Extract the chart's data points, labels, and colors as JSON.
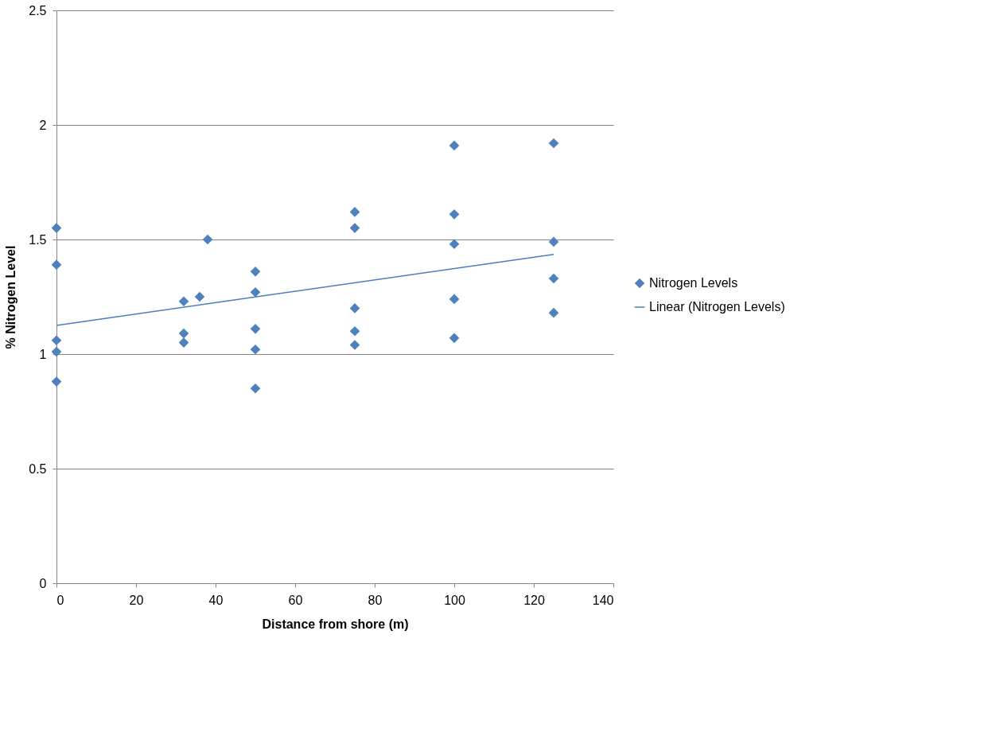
{
  "chart_data": {
    "type": "scatter",
    "xlabel": "Distance from shore (m)",
    "ylabel": "% Nitrogen Level",
    "xlim": [
      0,
      140
    ],
    "xticks": [
      0,
      20,
      40,
      60,
      80,
      100,
      120,
      140
    ],
    "ylim": [
      0,
      2.5
    ],
    "yticks": [
      0,
      0.5,
      1,
      1.5,
      2,
      2.5
    ],
    "grid": "y",
    "legend": "right",
    "series": [
      {
        "name": "Nitrogen Levels",
        "color": "#4f81bd",
        "marker": "diamond",
        "x": [
          0,
          0,
          0,
          0,
          0,
          32,
          32,
          32,
          36,
          38,
          50,
          50,
          50,
          50,
          50,
          75,
          75,
          75,
          75,
          75,
          100,
          100,
          100,
          100,
          100,
          125,
          125,
          125,
          125
        ],
        "values": [
          1.55,
          1.39,
          1.06,
          1.01,
          0.88,
          1.23,
          1.09,
          1.05,
          1.25,
          1.5,
          1.36,
          1.27,
          1.11,
          1.02,
          0.85,
          1.62,
          1.55,
          1.2,
          1.1,
          1.04,
          1.91,
          1.61,
          1.48,
          1.24,
          1.07,
          1.92,
          1.49,
          1.33,
          1.18
        ]
      },
      {
        "name": "Linear (Nitrogen Levels)",
        "type": "line",
        "marker": "none",
        "color": "#4a7ebb",
        "x": [
          0,
          125
        ],
        "values": [
          1.125,
          1.435
        ]
      }
    ]
  }
}
